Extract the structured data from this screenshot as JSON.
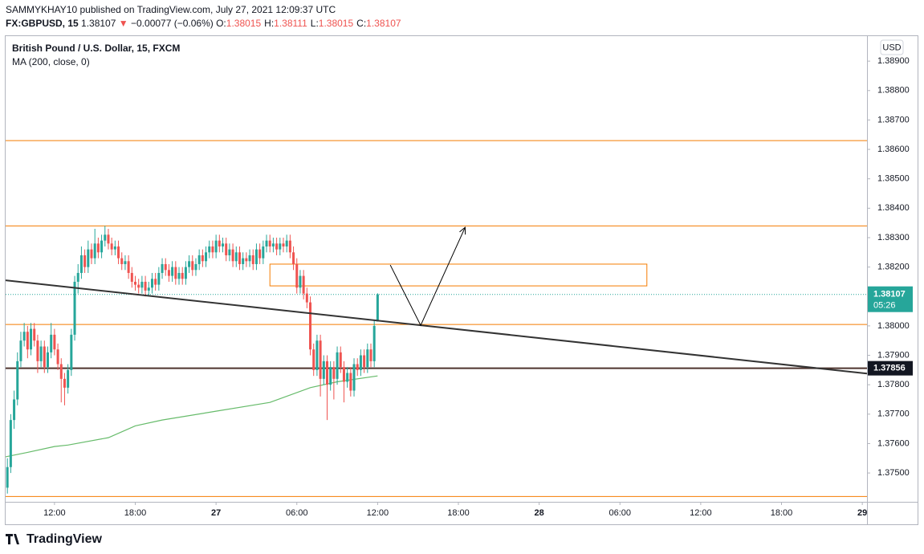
{
  "header": {
    "publisher": "SAMMYKHAY10 published on TradingView.com, July 27, 2021 12:09:37 UTC",
    "symbol": "FX:GBPUSD, 15",
    "last": "1.38107",
    "arrow": "▼",
    "change": "−0.00077 (−0.06%)",
    "ohlc": [
      {
        "label": "O:",
        "value": "1.38015"
      },
      {
        "label": "H:",
        "value": "1.38111"
      },
      {
        "label": "L:",
        "value": "1.38015"
      },
      {
        "label": "C:",
        "value": "1.38107"
      }
    ]
  },
  "footer": {
    "brand": "TradingView"
  },
  "chart_data": {
    "type": "candlestick",
    "title": "British Pound / U.S. Dollar, 15, FXCM",
    "currency": "USD",
    "up_color": "#26a69a",
    "down_color": "#ef5350",
    "x": [
      8.5,
      8.75,
      9,
      9.25,
      9.5,
      9.75,
      10,
      10.25,
      10.5,
      10.75,
      11,
      11.25,
      11.5,
      11.75,
      12,
      12.25,
      12.5,
      12.75,
      13,
      13.25,
      13.5,
      13.75,
      14,
      14.25,
      14.5,
      14.75,
      15,
      15.25,
      15.5,
      15.75,
      16,
      16.25,
      16.5,
      16.75,
      17,
      17.25,
      17.5,
      17.75,
      18,
      18.25,
      18.5,
      18.75,
      19,
      19.25,
      19.5,
      19.75,
      20,
      20.25,
      20.5,
      20.75,
      21,
      21.25,
      21.5,
      21.75,
      22,
      22.25,
      22.5,
      22.75,
      23,
      23.25,
      23.5,
      23.75,
      24,
      24.25,
      24.5,
      24.75,
      25,
      25.25,
      25.5,
      25.75,
      26,
      26.25,
      26.5,
      26.75,
      27,
      27.25,
      27.5,
      27.75,
      28,
      28.25,
      28.5,
      28.75,
      29,
      29.25,
      29.5,
      29.75,
      30,
      30.25,
      30.5,
      30.75,
      31,
      31.25,
      31.5,
      31.75,
      32,
      32.25,
      32.5,
      32.75,
      33,
      33.25,
      33.5,
      33.75,
      34,
      34.25,
      34.5,
      34.75,
      35,
      35.25,
      35.5,
      35.75,
      36
    ],
    "ohlc": [
      [
        1.3745,
        1.3755,
        1.3743,
        1.3752
      ],
      [
        1.3752,
        1.377,
        1.375,
        1.3768
      ],
      [
        1.3768,
        1.3778,
        1.3765,
        1.3775
      ],
      [
        1.3775,
        1.3791,
        1.3773,
        1.3788
      ],
      [
        1.3788,
        1.3798,
        1.3786,
        1.3795
      ],
      [
        1.3795,
        1.3801,
        1.3793,
        1.3798
      ],
      [
        1.3798,
        1.38,
        1.3789,
        1.3792
      ],
      [
        1.3792,
        1.3801,
        1.379,
        1.3799
      ],
      [
        1.3799,
        1.3801,
        1.3793,
        1.3795
      ],
      [
        1.3795,
        1.3797,
        1.3784,
        1.3788
      ],
      [
        1.3788,
        1.3795,
        1.3786,
        1.3793
      ],
      [
        1.3793,
        1.3795,
        1.3784,
        1.3786
      ],
      [
        1.3786,
        1.3793,
        1.3784,
        1.3791
      ],
      [
        1.3791,
        1.3801,
        1.3789,
        1.3797
      ],
      [
        1.3797,
        1.3799,
        1.379,
        1.3792
      ],
      [
        1.3792,
        1.3794,
        1.3785,
        1.3787
      ],
      [
        1.3787,
        1.3789,
        1.3774,
        1.3782
      ],
      [
        1.3782,
        1.3784,
        1.3773,
        1.3779
      ],
      [
        1.3779,
        1.3787,
        1.3777,
        1.3785
      ],
      [
        1.3785,
        1.3799,
        1.3783,
        1.3797
      ],
      [
        1.3797,
        1.3817,
        1.3795,
        1.3815
      ],
      [
        1.3815,
        1.3821,
        1.3811,
        1.3818
      ],
      [
        1.3818,
        1.3827,
        1.3816,
        1.3824
      ],
      [
        1.3824,
        1.3826,
        1.3818,
        1.382
      ],
      [
        1.382,
        1.3829,
        1.3818,
        1.3826
      ],
      [
        1.3826,
        1.3828,
        1.3821,
        1.3823
      ],
      [
        1.3823,
        1.3833,
        1.3821,
        1.3828
      ],
      [
        1.3828,
        1.383,
        1.3823,
        1.3825
      ],
      [
        1.3825,
        1.3831,
        1.3823,
        1.3829
      ],
      [
        1.3829,
        1.3834,
        1.3827,
        1.3831
      ],
      [
        1.3831,
        1.3833,
        1.3826,
        1.3828
      ],
      [
        1.3828,
        1.383,
        1.3824,
        1.3826
      ],
      [
        1.3826,
        1.3829,
        1.3824,
        1.3827
      ],
      [
        1.3827,
        1.3829,
        1.3821,
        1.3823
      ],
      [
        1.3823,
        1.3825,
        1.3819,
        1.3821
      ],
      [
        1.3821,
        1.3824,
        1.3819,
        1.3822
      ],
      [
        1.3822,
        1.3824,
        1.3816,
        1.3818
      ],
      [
        1.3818,
        1.382,
        1.3813,
        1.3815
      ],
      [
        1.3815,
        1.3817,
        1.3812,
        1.3814
      ],
      [
        1.3814,
        1.3816,
        1.3811,
        1.3813
      ],
      [
        1.3813,
        1.3817,
        1.3811,
        1.3815
      ],
      [
        1.3815,
        1.3817,
        1.381,
        1.3812
      ],
      [
        1.3812,
        1.3815,
        1.381,
        1.3813
      ],
      [
        1.3813,
        1.3818,
        1.3811,
        1.3816
      ],
      [
        1.3816,
        1.3818,
        1.3812,
        1.3814
      ],
      [
        1.3814,
        1.382,
        1.3812,
        1.3818
      ],
      [
        1.3818,
        1.3823,
        1.3816,
        1.3821
      ],
      [
        1.3821,
        1.3823,
        1.3817,
        1.3819
      ],
      [
        1.3819,
        1.3821,
        1.3815,
        1.3817
      ],
      [
        1.3817,
        1.3822,
        1.3815,
        1.382
      ],
      [
        1.382,
        1.3822,
        1.3814,
        1.3816
      ],
      [
        1.3816,
        1.382,
        1.3814,
        1.3818
      ],
      [
        1.3818,
        1.382,
        1.3814,
        1.3816
      ],
      [
        1.3816,
        1.3822,
        1.3814,
        1.382
      ],
      [
        1.382,
        1.3824,
        1.3818,
        1.3822
      ],
      [
        1.3822,
        1.3824,
        1.3817,
        1.3819
      ],
      [
        1.3819,
        1.3823,
        1.3817,
        1.3821
      ],
      [
        1.3821,
        1.3826,
        1.3819,
        1.3824
      ],
      [
        1.3824,
        1.3826,
        1.382,
        1.3822
      ],
      [
        1.3822,
        1.3827,
        1.382,
        1.3825
      ],
      [
        1.3825,
        1.3829,
        1.3823,
        1.3827
      ],
      [
        1.3827,
        1.3829,
        1.3823,
        1.3825
      ],
      [
        1.3825,
        1.3831,
        1.3823,
        1.3829
      ],
      [
        1.3829,
        1.3831,
        1.3825,
        1.3827
      ],
      [
        1.3827,
        1.383,
        1.3825,
        1.3828
      ],
      [
        1.3828,
        1.383,
        1.3822,
        1.3824
      ],
      [
        1.3824,
        1.3828,
        1.3822,
        1.3826
      ],
      [
        1.3826,
        1.3828,
        1.382,
        1.3822
      ],
      [
        1.3822,
        1.3827,
        1.382,
        1.3825
      ],
      [
        1.3825,
        1.3827,
        1.3819,
        1.3821
      ],
      [
        1.3821,
        1.3825,
        1.3819,
        1.3823
      ],
      [
        1.3823,
        1.3825,
        1.382,
        1.3822
      ],
      [
        1.3822,
        1.3826,
        1.382,
        1.3824
      ],
      [
        1.3824,
        1.3826,
        1.3819,
        1.3821
      ],
      [
        1.3821,
        1.3828,
        1.3819,
        1.3826
      ],
      [
        1.3826,
        1.3828,
        1.3821,
        1.3823
      ],
      [
        1.3823,
        1.3829,
        1.3821,
        1.3827
      ],
      [
        1.3827,
        1.3831,
        1.3825,
        1.3829
      ],
      [
        1.3829,
        1.3831,
        1.3825,
        1.3827
      ],
      [
        1.3827,
        1.383,
        1.3825,
        1.3828
      ],
      [
        1.3828,
        1.383,
        1.3824,
        1.3826
      ],
      [
        1.3826,
        1.383,
        1.3824,
        1.3828
      ],
      [
        1.3828,
        1.383,
        1.3825,
        1.3827
      ],
      [
        1.3827,
        1.3831,
        1.3825,
        1.3829
      ],
      [
        1.3829,
        1.3831,
        1.3823,
        1.3825
      ],
      [
        1.3825,
        1.3827,
        1.3819,
        1.3821
      ],
      [
        1.3821,
        1.3823,
        1.3811,
        1.3813
      ],
      [
        1.3813,
        1.3819,
        1.3811,
        1.3817
      ],
      [
        1.3817,
        1.3819,
        1.3809,
        1.3811
      ],
      [
        1.3811,
        1.3813,
        1.3806,
        1.3808
      ],
      [
        1.3808,
        1.381,
        1.379,
        1.3792
      ],
      [
        1.3792,
        1.3794,
        1.3783,
        1.3785
      ],
      [
        1.3785,
        1.3797,
        1.3783,
        1.3795
      ],
      [
        1.3795,
        1.3797,
        1.3776,
        1.3782
      ],
      [
        1.3782,
        1.379,
        1.378,
        1.3788
      ],
      [
        1.3788,
        1.379,
        1.3768,
        1.378
      ],
      [
        1.378,
        1.3788,
        1.3778,
        1.3786
      ],
      [
        1.3786,
        1.3788,
        1.3775,
        1.3782
      ],
      [
        1.3782,
        1.3793,
        1.378,
        1.3791
      ],
      [
        1.3791,
        1.3793,
        1.3784,
        1.3786
      ],
      [
        1.3786,
        1.3788,
        1.3774,
        1.3781
      ],
      [
        1.3781,
        1.3786,
        1.3779,
        1.3784
      ],
      [
        1.3784,
        1.3786,
        1.3776,
        1.3778
      ],
      [
        1.3778,
        1.3789,
        1.3776,
        1.3787
      ],
      [
        1.3787,
        1.3789,
        1.3783,
        1.3785
      ],
      [
        1.3785,
        1.3792,
        1.3783,
        1.379
      ],
      [
        1.379,
        1.3792,
        1.3784,
        1.3786
      ],
      [
        1.3786,
        1.3794,
        1.3784,
        1.3792
      ],
      [
        1.3792,
        1.3794,
        1.3786,
        1.3788
      ],
      [
        1.3788,
        1.3802,
        1.3786,
        1.38
      ],
      [
        1.38015,
        1.38111,
        1.38015,
        1.38107
      ]
    ],
    "ma": {
      "name": "MA (200, close, 0)",
      "color": "#66bb6a",
      "x": [
        8.37,
        10,
        12,
        13,
        16,
        18,
        20,
        24,
        28,
        31,
        33,
        36
      ],
      "values": [
        1.37555,
        1.3757,
        1.3759,
        1.37595,
        1.3762,
        1.3766,
        1.3768,
        1.3771,
        1.3774,
        1.3779,
        1.3781,
        1.3783
      ]
    },
    "levels": [
      1.3863,
      1.3834,
      1.38005,
      1.3742
    ],
    "level_color": "#f57c00",
    "key_level": {
      "value": 1.37856,
      "label": "1.37856",
      "color": "#4e342e"
    },
    "zone": {
      "x": [
        28,
        56
      ],
      "y": [
        1.38136,
        1.3821
      ],
      "color": "#f57c00"
    },
    "trendline": {
      "x": [
        8.37,
        72.35
      ],
      "y": [
        1.38155,
        1.37838
      ],
      "color": "#333333"
    },
    "arrow": {
      "x": [
        36.94,
        39.2,
        42.5
      ],
      "y": [
        1.38207,
        1.38002,
        1.38335
      ],
      "color": "#000000"
    },
    "last_price": {
      "value": 1.38107,
      "label": "1.38107",
      "countdown": "05:26",
      "color": "#26a69a"
    },
    "xlim": [
      8.37,
      72.35
    ],
    "ylim": [
      1.37402,
      1.38985
    ],
    "xticks": [
      {
        "value": 12,
        "label": "12:00"
      },
      {
        "value": 18,
        "label": "18:00"
      },
      {
        "value": 24,
        "label": "27"
      },
      {
        "value": 30,
        "label": "06:00"
      },
      {
        "value": 36,
        "label": "12:00"
      },
      {
        "value": 42,
        "label": "18:00"
      },
      {
        "value": 48,
        "label": "28"
      },
      {
        "value": 54,
        "label": "06:00"
      },
      {
        "value": 60,
        "label": "12:00"
      },
      {
        "value": 66,
        "label": "18:00"
      },
      {
        "value": 72,
        "label": "29"
      }
    ],
    "yticks": [
      {
        "value": 1.375,
        "label": "1.37500"
      },
      {
        "value": 1.376,
        "label": "1.37600"
      },
      {
        "value": 1.377,
        "label": "1.37700"
      },
      {
        "value": 1.378,
        "label": "1.37800"
      },
      {
        "value": 1.379,
        "label": "1.37900"
      },
      {
        "value": 1.38,
        "label": "1.38000"
      },
      {
        "value": 1.381,
        "label": "1.38100"
      },
      {
        "value": 1.382,
        "label": "1.38200"
      },
      {
        "value": 1.383,
        "label": "1.38300"
      },
      {
        "value": 1.384,
        "label": "1.38400"
      },
      {
        "value": 1.385,
        "label": "1.38500"
      },
      {
        "value": 1.386,
        "label": "1.38600"
      },
      {
        "value": 1.387,
        "label": "1.38700"
      },
      {
        "value": 1.388,
        "label": "1.38800"
      },
      {
        "value": 1.389,
        "label": "1.38900"
      }
    ]
  }
}
